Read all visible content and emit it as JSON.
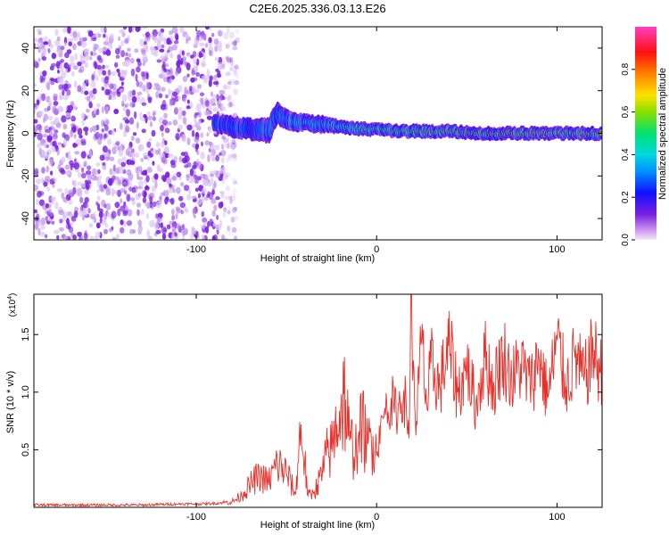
{
  "title": "C2E6.2025.336.03.13.E26",
  "colors": {
    "snr_line": "#e8302a",
    "noise_dot": "#7a1fe0",
    "frame": "#000000"
  },
  "chart_data": [
    {
      "type": "heatmap",
      "name": "spectrogram",
      "xlabel": "Height of straight line (km)",
      "ylabel": "Frequency (Hz)",
      "xlim": [
        -190,
        125
      ],
      "ylim": [
        -50,
        50
      ],
      "xticks": [
        -100,
        0,
        100
      ],
      "xtick_labels": [
        "-100",
        "0",
        "100"
      ],
      "yticks": [
        -40,
        -20,
        0,
        20,
        40
      ],
      "ytick_labels": [
        "-40",
        "-20",
        "0",
        "20",
        "40"
      ],
      "noise_region_x": [
        -190,
        -85
      ],
      "signal_track": {
        "x": [
          -90,
          -80,
          -70,
          -60,
          -55,
          -50,
          -40,
          -30,
          -20,
          -10,
          0,
          10,
          20,
          40,
          60,
          80,
          100,
          125
        ],
        "freq": [
          5,
          3,
          2,
          1,
          10,
          6,
          5,
          4,
          3,
          2,
          2,
          1,
          1,
          1,
          0,
          0,
          0,
          0
        ],
        "width": [
          4,
          5,
          5,
          6,
          5,
          5,
          4,
          4,
          3,
          3,
          3,
          3,
          3,
          3,
          3,
          3,
          3,
          3
        ],
        "amplitude": [
          0.35,
          0.4,
          0.4,
          0.45,
          0.45,
          0.5,
          0.55,
          0.55,
          0.6,
          0.65,
          0.7,
          0.75,
          0.8,
          0.85,
          0.85,
          0.9,
          0.9,
          0.9
        ]
      },
      "colorbar": {
        "label": "Normalized spectral amplitude",
        "range": [
          0.0,
          1.0
        ],
        "ticks": [
          0.0,
          0.2,
          0.4,
          0.6,
          0.8
        ],
        "tick_labels": [
          "0.0",
          "0.2",
          "0.4",
          "0.6",
          "0.8"
        ],
        "colors": [
          "#f4e6fb",
          "#7a1fe0",
          "#1010ff",
          "#00c8ff",
          "#00e070",
          "#8ce000",
          "#ffe000",
          "#ff8000",
          "#ff1010",
          "#ff40c0"
        ]
      }
    },
    {
      "type": "line",
      "name": "snr",
      "xlabel": "Height of straight line (km)",
      "ylabel": "SNR (10 * v/v)",
      "yscale_label": "(x10",
      "yscale_exp": "4",
      "xlim": [
        -190,
        125
      ],
      "ylim": [
        0,
        1.85
      ],
      "xticks": [
        -100,
        0,
        100
      ],
      "xtick_labels": [
        "-100",
        "0",
        "100"
      ],
      "yticks": [
        0.5,
        1.0,
        1.5
      ],
      "ytick_labels": [
        "0.5",
        "1.0",
        "1.5"
      ],
      "series": [
        {
          "name": "SNR",
          "x": [
            -190,
            -170,
            -150,
            -130,
            -110,
            -95,
            -85,
            -80,
            -75,
            -70,
            -65,
            -60,
            -55,
            -50,
            -45,
            -42,
            -38,
            -35,
            -30,
            -28,
            -25,
            -22,
            -18,
            -15,
            -12,
            -10,
            -8,
            -5,
            -2,
            0,
            2,
            5,
            8,
            10,
            12,
            15,
            18,
            19,
            20,
            22,
            25,
            28,
            30,
            35,
            40,
            45,
            50,
            55,
            60,
            65,
            70,
            75,
            80,
            85,
            90,
            95,
            100,
            105,
            110,
            115,
            120,
            125
          ],
          "y": [
            0.02,
            0.02,
            0.02,
            0.02,
            0.03,
            0.03,
            0.04,
            0.05,
            0.1,
            0.2,
            0.28,
            0.22,
            0.38,
            0.3,
            0.12,
            0.72,
            0.1,
            0.12,
            0.3,
            0.45,
            0.5,
            0.72,
            0.98,
            0.58,
            0.48,
            0.62,
            0.7,
            0.55,
            0.62,
            0.45,
            0.72,
            0.8,
            0.95,
            0.82,
            0.9,
            1.02,
            0.6,
            1.85,
            1.1,
            0.75,
            1.45,
            0.85,
            1.25,
            1.05,
            1.4,
            1.0,
            1.2,
            0.9,
            1.3,
            1.05,
            1.35,
            1.1,
            1.25,
            1.05,
            1.3,
            0.95,
            1.45,
            1.05,
            1.3,
            1.1,
            1.35,
            1.15
          ]
        }
      ]
    }
  ]
}
